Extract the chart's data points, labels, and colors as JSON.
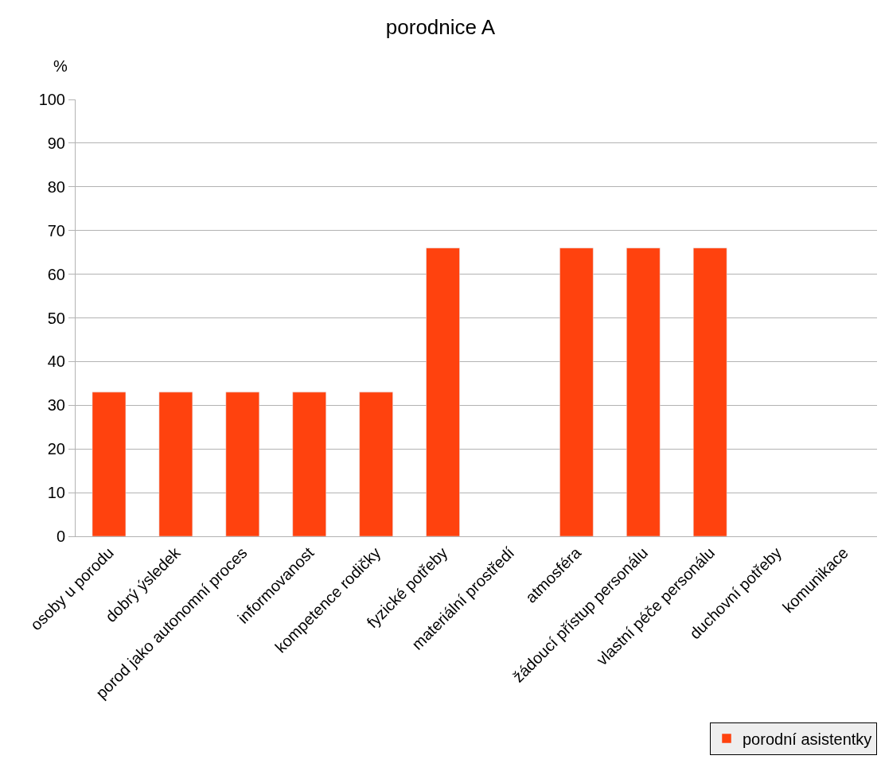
{
  "chart_data": {
    "type": "bar",
    "title": "porodnice A",
    "ylabel": "%",
    "categories": [
      "osoby u porodu",
      "dobrý ýsledek",
      "porod jako autonomní proces",
      "informovanost",
      "kompetence rodičky",
      "fyzické potřeby",
      "materiální prostředí",
      "atmosféra",
      "žádoucí přístup personálu",
      "vlastní péče personálu",
      "duchovní potřeby",
      "komunikace"
    ],
    "series": [
      {
        "name": "porodní asistentky",
        "color": "#ff420e",
        "values": [
          33,
          33,
          33,
          33,
          33,
          66,
          null,
          66,
          66,
          66,
          null,
          null
        ]
      }
    ],
    "ylim": [
      0,
      100
    ],
    "yticks": [
      0,
      10,
      20,
      30,
      40,
      50,
      60,
      70,
      80,
      90,
      100
    ],
    "grid": "y",
    "legend": "bottom right"
  }
}
